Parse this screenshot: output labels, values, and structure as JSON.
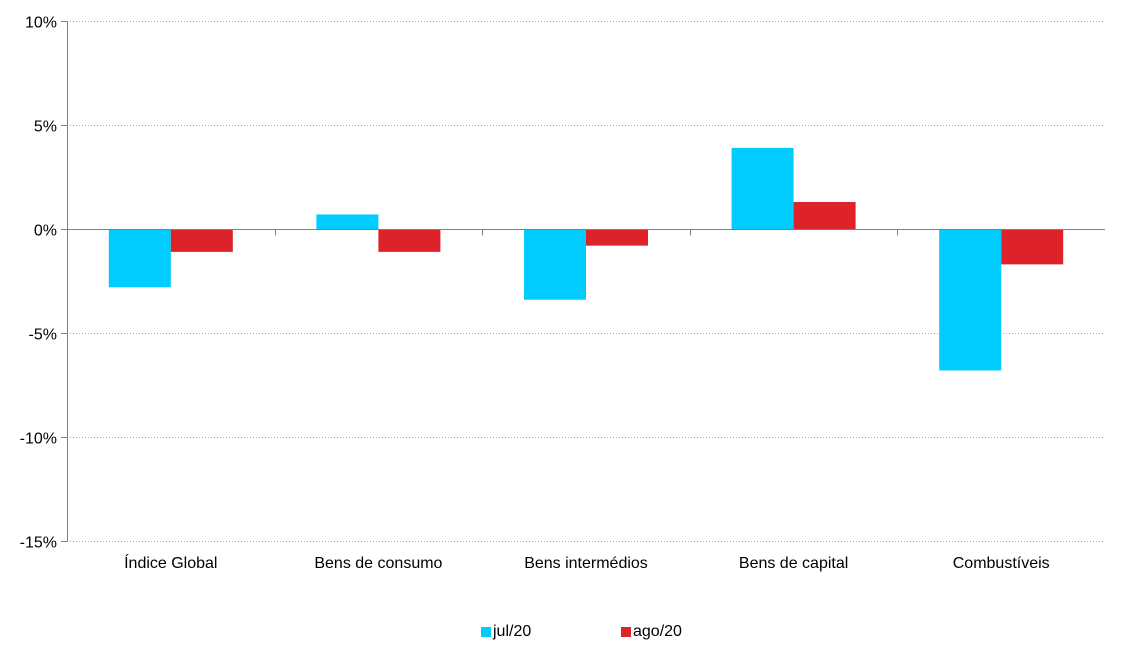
{
  "chart_data": {
    "type": "bar",
    "categories": [
      "Índice Global",
      "Bens de consumo",
      "Bens intermédios",
      "Bens de capital",
      "Combustíveis"
    ],
    "series": [
      {
        "name": "jul/20",
        "color": "#00CCFF",
        "values": [
          -2.8,
          0.7,
          -3.4,
          3.9,
          -6.8
        ]
      },
      {
        "name": "ago/20",
        "color": "#DD2229",
        "values": [
          -1.1,
          -1.1,
          -0.8,
          1.3,
          -1.7
        ]
      }
    ],
    "yticks": [
      10,
      5,
      0,
      -5,
      -10,
      -15
    ],
    "ytick_labels": [
      "10%",
      "5%",
      "0%",
      "-5%",
      "-10%",
      "-15%"
    ],
    "ylim": [
      -15,
      10
    ],
    "title": "",
    "xlabel": "",
    "ylabel": "",
    "grid": true,
    "legend_position": "bottom-center"
  }
}
